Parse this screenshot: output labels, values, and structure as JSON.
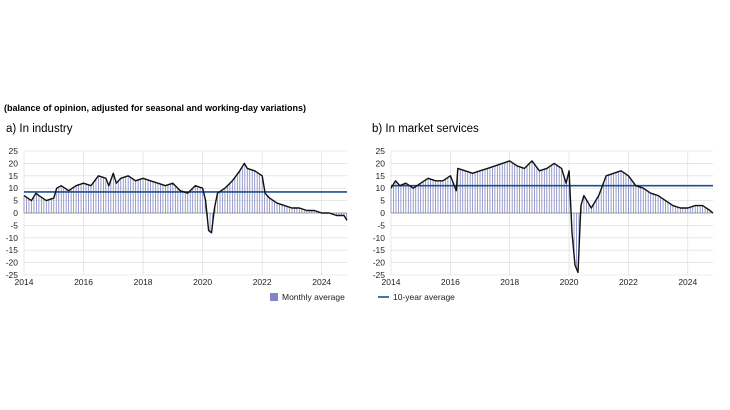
{
  "subtitle": "(balance of opinion, adjusted for seasonal and working-day variations)",
  "colors": {
    "line": "#111111",
    "bars": "#7f86c2",
    "average": "#1f4e8c",
    "grid": "#d9d9d9",
    "axis": "#555555"
  },
  "legend": {
    "monthly_average": "Monthly average",
    "ten_year_average": "10-year average"
  },
  "chart_data": [
    {
      "type": "bar+line",
      "title": "a)  In industry",
      "xlabel": "",
      "ylabel": "",
      "ylim": [
        -25,
        25
      ],
      "yticks": [
        -25,
        -20,
        -15,
        -10,
        -5,
        0,
        5,
        10,
        15,
        20,
        25
      ],
      "xticks": [
        2014,
        2016,
        2018,
        2020,
        2022,
        2024
      ],
      "xlim": [
        2014,
        2024.85
      ],
      "grid": true,
      "ten_year_average": 8.5,
      "series": [
        {
          "x": [
            2014.0,
            2014.25,
            2014.4,
            2014.5,
            2014.75,
            2015.0,
            2015.1,
            2015.25,
            2015.5,
            2015.75,
            2016.0,
            2016.25,
            2016.5,
            2016.75,
            2016.85,
            2017.0,
            2017.1,
            2017.25,
            2017.5,
            2017.75,
            2018.0,
            2018.25,
            2018.5,
            2018.75,
            2019.0,
            2019.25,
            2019.5,
            2019.75,
            2020.0,
            2020.1,
            2020.2,
            2020.3,
            2020.4,
            2020.5,
            2020.75,
            2021.0,
            2021.25,
            2021.4,
            2021.5,
            2021.75,
            2022.0,
            2022.1,
            2022.25,
            2022.5,
            2022.75,
            2023.0,
            2023.25,
            2023.5,
            2023.75,
            2024.0,
            2024.25,
            2024.5,
            2024.75,
            2024.85
          ],
          "values": [
            7,
            5,
            8,
            7,
            5,
            6,
            10,
            11,
            9,
            11,
            12,
            11,
            15,
            14,
            11,
            16,
            12,
            14,
            15,
            13,
            14,
            13,
            12,
            11,
            12,
            9,
            8,
            11,
            10,
            5,
            -7,
            -8,
            2,
            8,
            10,
            13,
            17,
            20,
            18,
            17,
            15,
            8,
            6,
            4,
            3,
            2,
            2,
            1,
            1,
            0,
            0,
            -1,
            -1,
            -3
          ]
        }
      ]
    },
    {
      "type": "bar+line",
      "title": "b)  In market services",
      "xlabel": "",
      "ylabel": "",
      "ylim": [
        -25,
        25
      ],
      "yticks": [
        -25,
        -20,
        -15,
        -10,
        -5,
        0,
        5,
        10,
        15,
        20,
        25
      ],
      "xticks": [
        2014,
        2016,
        2018,
        2020,
        2022,
        2024
      ],
      "xlim": [
        2014,
        2024.85
      ],
      "grid": true,
      "ten_year_average": 11,
      "series": [
        {
          "x": [
            2014.0,
            2014.15,
            2014.3,
            2014.5,
            2014.75,
            2015.0,
            2015.25,
            2015.5,
            2015.75,
            2016.0,
            2016.2,
            2016.25,
            2016.5,
            2016.75,
            2017.0,
            2017.25,
            2017.5,
            2017.75,
            2018.0,
            2018.25,
            2018.5,
            2018.75,
            2019.0,
            2019.25,
            2019.5,
            2019.75,
            2019.9,
            2020.0,
            2020.1,
            2020.2,
            2020.3,
            2020.4,
            2020.5,
            2020.75,
            2021.0,
            2021.25,
            2021.5,
            2021.75,
            2022.0,
            2022.25,
            2022.5,
            2022.75,
            2023.0,
            2023.25,
            2023.5,
            2023.75,
            2024.0,
            2024.25,
            2024.5,
            2024.75,
            2024.85
          ],
          "values": [
            10,
            13,
            11,
            12,
            10,
            12,
            14,
            13,
            13,
            15,
            9,
            18,
            17,
            16,
            17,
            18,
            19,
            20,
            21,
            19,
            18,
            21,
            17,
            18,
            20,
            18,
            12,
            17,
            -8,
            -21,
            -24,
            3,
            7,
            2,
            7,
            15,
            16,
            17,
            15,
            11,
            10,
            8,
            7,
            5,
            3,
            2,
            2,
            3,
            3,
            1,
            0
          ]
        }
      ]
    }
  ]
}
